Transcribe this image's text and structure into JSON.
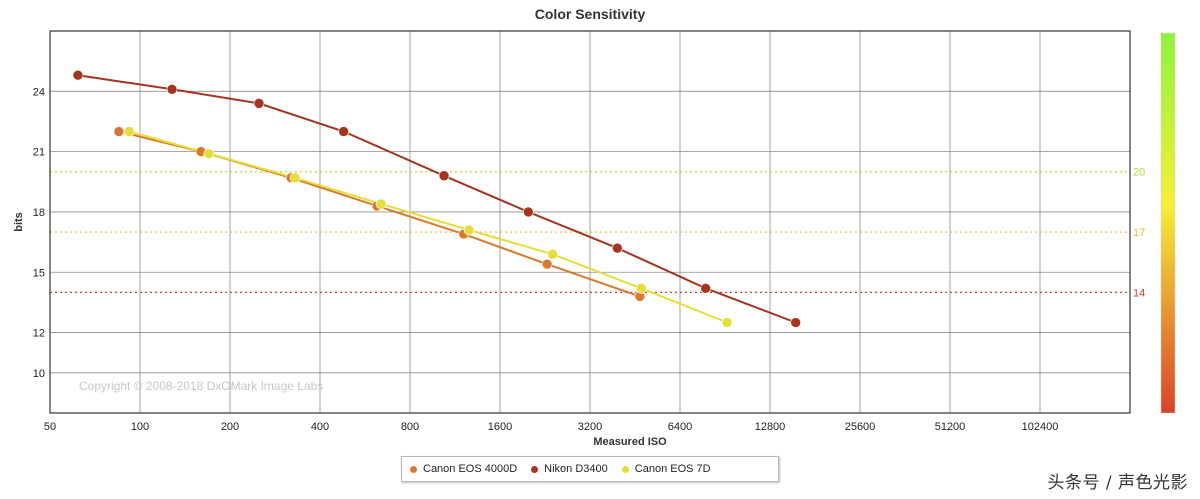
{
  "chart_data": {
    "type": "line",
    "title": "Color Sensitivity",
    "xlabel": "Measured ISO",
    "ylabel": "bits",
    "x_scale": "log2",
    "xlim": [
      50,
      204800
    ],
    "ylim": [
      8,
      27
    ],
    "x_ticks": [
      50,
      100,
      200,
      400,
      800,
      1600,
      3200,
      6400,
      12800,
      25600,
      51200,
      102400
    ],
    "x_tick_labels": [
      "50",
      "100",
      "200",
      "400",
      "800",
      "1600",
      "3200",
      "6400",
      "12800",
      "25600",
      "51200",
      "102400"
    ],
    "y_ticks": [
      10,
      12,
      15,
      18,
      21,
      24
    ],
    "y_tick_labels": [
      "10",
      "12",
      "15",
      "18",
      "21",
      "24"
    ],
    "reference_lines": [
      {
        "value": 20,
        "label": "20",
        "color": "#a6e22e"
      },
      {
        "value": 17,
        "label": "17",
        "color": "#e9c21f"
      },
      {
        "value": 14,
        "label": "14",
        "color": "#d63a2a"
      }
    ],
    "color_scale": {
      "top": "#90f23c",
      "middle": "#f5ef3a",
      "bottom": "#d9432a"
    },
    "copyright": "Copyright © 2008-2018 DxOMark Image Labs",
    "series": [
      {
        "name": "Canon EOS 4000D",
        "color": "#d9792f",
        "x": [
          85,
          160,
          320,
          620,
          1210,
          2300,
          4700
        ],
        "y": [
          22.0,
          21.0,
          19.7,
          18.3,
          16.9,
          15.4,
          13.8
        ]
      },
      {
        "name": "Nikon D3400",
        "color": "#a4351f",
        "x": [
          62,
          128,
          250,
          480,
          1040,
          1990,
          3950,
          7800,
          15600
        ],
        "y": [
          24.8,
          24.1,
          23.4,
          22.0,
          19.8,
          18.0,
          16.2,
          14.2,
          12.5
        ]
      },
      {
        "name": "Canon EOS 7D",
        "color": "#e4dd3a",
        "x": [
          92,
          170,
          330,
          640,
          1260,
          2400,
          4750,
          9200
        ],
        "y": [
          22.0,
          20.9,
          19.7,
          18.4,
          17.1,
          15.9,
          14.2,
          12.5
        ]
      }
    ]
  },
  "watermark": "头条号 / 声色光影"
}
